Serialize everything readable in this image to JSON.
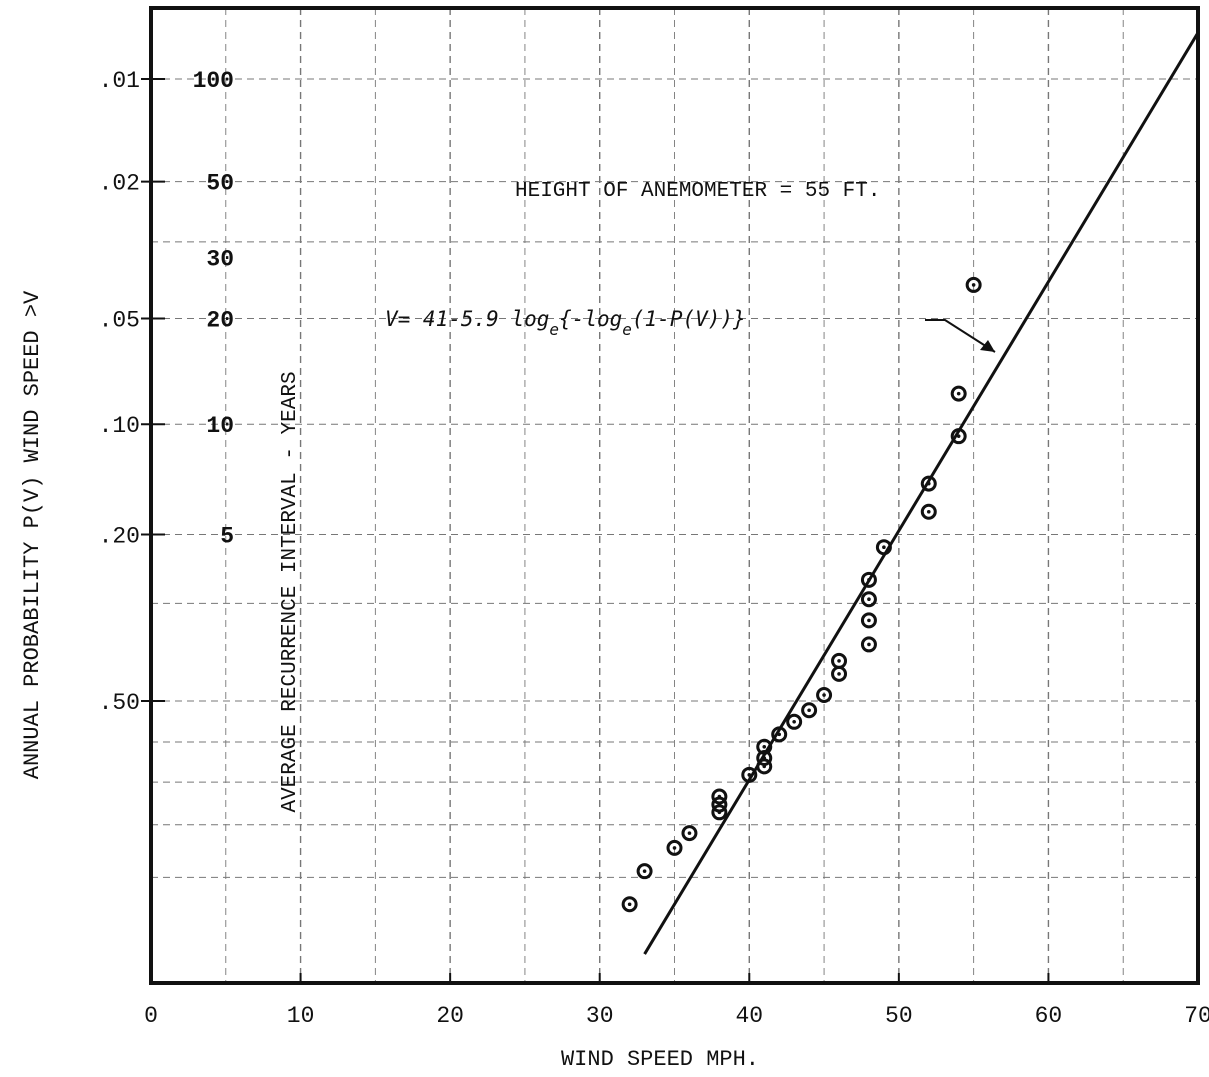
{
  "chart_data": {
    "type": "scatter",
    "title": "",
    "xlabel": "WIND SPEED MPH.",
    "ylabel": "ANNUAL PROBABILITY P(V) WIND SPEED >V",
    "secondary_label": "AVERAGE RECURRENCE INTERVAL - YEARS",
    "xlim": [
      0,
      70
    ],
    "y_scale": "gumbel (extreme-value probability)",
    "x_ticks": [
      "0",
      "10",
      "20",
      "30",
      "40",
      "50",
      "60",
      "70"
    ],
    "x_tick_values": [
      0,
      10,
      20,
      30,
      40,
      50,
      60,
      70
    ],
    "y_ticks": [
      ".01",
      ".02",
      ".05",
      ".10",
      ".20",
      ".50"
    ],
    "y_tick_values": [
      0.01,
      0.02,
      0.05,
      0.1,
      0.2,
      0.5
    ],
    "recurrence_ticks": [
      "100",
      "50",
      "30",
      "20",
      "10",
      "5"
    ],
    "recurrence_tick_values": [
      100,
      50,
      30,
      20,
      10,
      5
    ],
    "annotation_height": "HEIGHT OF ANEMOMETER = 55 FT.",
    "fit_equation": {
      "prefix": "V= 41-5.9 ",
      "log1": "log",
      "sub1": "e",
      "middle": "{-",
      "log2": "log",
      "sub2": "e",
      "suffix": "(1-P(V))}"
    },
    "fit_line": {
      "intercept": 41,
      "slope": 5.9,
      "x_range": [
        33,
        70
      ]
    },
    "grid": true,
    "legend": "none",
    "points": [
      {
        "x": 32,
        "y": 0.937
      },
      {
        "x": 33,
        "y": 0.89
      },
      {
        "x": 35,
        "y": 0.848
      },
      {
        "x": 36,
        "y": 0.818
      },
      {
        "x": 38,
        "y": 0.772
      },
      {
        "x": 38,
        "y": 0.754
      },
      {
        "x": 38,
        "y": 0.735
      },
      {
        "x": 40,
        "y": 0.682
      },
      {
        "x": 41,
        "y": 0.661
      },
      {
        "x": 41,
        "y": 0.64
      },
      {
        "x": 41,
        "y": 0.612
      },
      {
        "x": 42,
        "y": 0.581
      },
      {
        "x": 43,
        "y": 0.55
      },
      {
        "x": 44,
        "y": 0.522
      },
      {
        "x": 45,
        "y": 0.486
      },
      {
        "x": 46,
        "y": 0.438
      },
      {
        "x": 46,
        "y": 0.41
      },
      {
        "x": 48,
        "y": 0.376
      },
      {
        "x": 48,
        "y": 0.33
      },
      {
        "x": 48,
        "y": 0.293
      },
      {
        "x": 48,
        "y": 0.262
      },
      {
        "x": 49,
        "y": 0.216
      },
      {
        "x": 52,
        "y": 0.174
      },
      {
        "x": 52,
        "y": 0.146
      },
      {
        "x": 54,
        "y": 0.108
      },
      {
        "x": 54,
        "y": 0.082
      },
      {
        "x": 55,
        "y": 0.04
      }
    ]
  }
}
